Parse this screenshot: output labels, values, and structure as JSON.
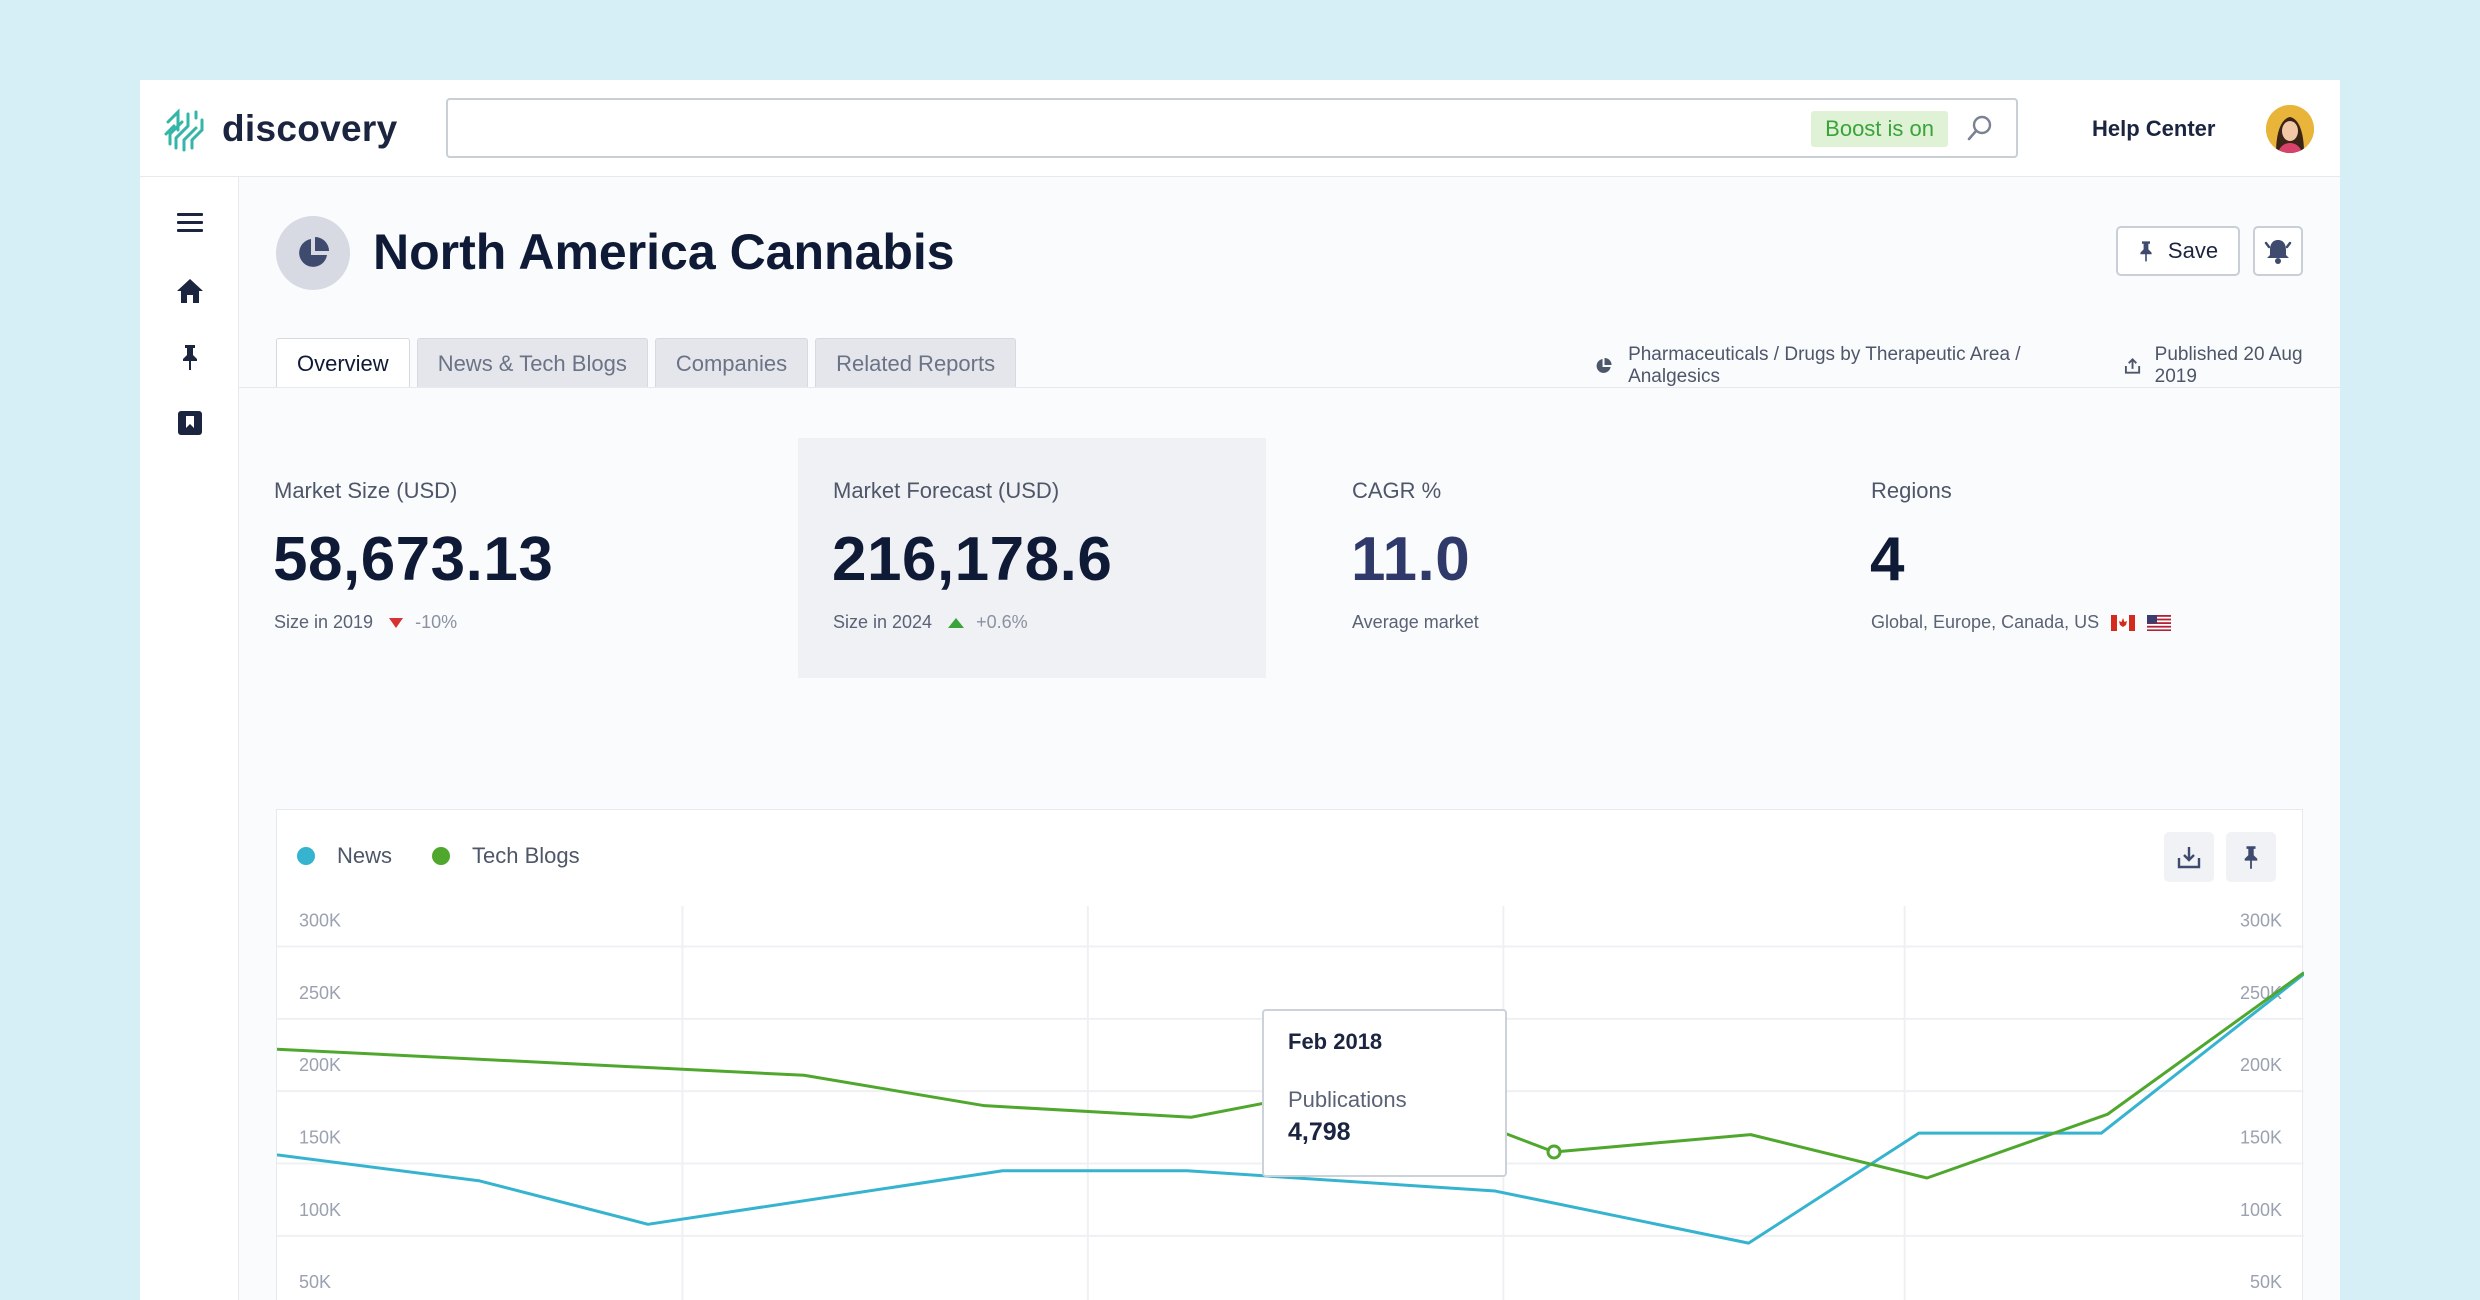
{
  "app": {
    "logo_text": "discovery"
  },
  "search": {
    "value": "",
    "boost_label": "Boost is on"
  },
  "header": {
    "help_label": "Help Center"
  },
  "page": {
    "title": "North America Cannabis",
    "save_label": "Save",
    "tabs": [
      "Overview",
      "News & Tech Blogs",
      "Companies",
      "Related Reports"
    ],
    "active_tab": "Overview",
    "breadcrumb": "Pharmaceuticals / Drugs by Therapeutic Area / Analgesics",
    "published": "Published 20 Aug 2019"
  },
  "stats": [
    {
      "label": "Market Size (USD)",
      "value": "58,673.13",
      "sub": "Size in 2019",
      "change": "-10%",
      "trend": "down"
    },
    {
      "label": "Market Forecast (USD)",
      "value": "216,178.6",
      "sub": "Size in 2024",
      "change": "+0.6%",
      "trend": "up"
    },
    {
      "label": "CAGR %",
      "value": "11.0",
      "sub": "Average market"
    },
    {
      "label": "Regions",
      "value": "4",
      "sub": "Global, Europe, Canada, US"
    }
  ],
  "colors": {
    "news": "#35b3cf",
    "tech_blogs": "#4fa72e",
    "accent_green": "#3aa33a",
    "negative": "#d63333"
  },
  "tooltip": {
    "date": "Feb 2018",
    "metric": "Publications",
    "value": "4,798"
  },
  "chart_data": {
    "type": "line",
    "legend": [
      "News",
      "Tech Blogs"
    ],
    "legend_position": "top-left",
    "y_tick_labels": [
      "300K",
      "250K",
      "200K",
      "150K",
      "100K",
      "50K"
    ],
    "y_ticks": [
      300000,
      250000,
      200000,
      150000,
      100000,
      50000
    ],
    "ylim": [
      37000,
      310000
    ],
    "grid": true,
    "series": [
      {
        "name": "News",
        "x": [
          0,
          0.1,
          0.183,
          0.358,
          0.449,
          0.601,
          0.726,
          0.81,
          0.9,
          1
        ],
        "values": [
          138000,
          120000,
          90000,
          127000,
          127000,
          113000,
          77000,
          153000,
          153000,
          263000
        ]
      },
      {
        "name": "Tech Blogs",
        "x": [
          0,
          0.26,
          0.349,
          0.451,
          0.54,
          0.63,
          0.727,
          0.814,
          0.903,
          1
        ],
        "values": [
          211000,
          193000,
          172000,
          164000,
          188000,
          140000,
          152000,
          122000,
          166000,
          264000
        ]
      }
    ],
    "highlighted_point": {
      "series": "Tech Blogs",
      "x": 0.63,
      "value": 140000
    }
  }
}
